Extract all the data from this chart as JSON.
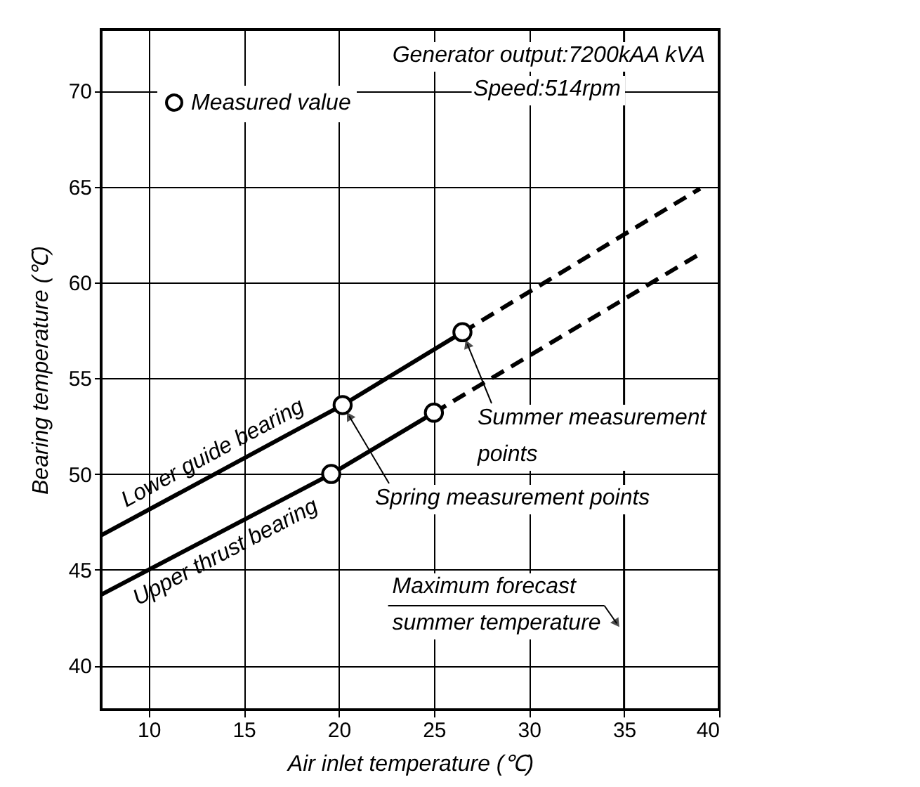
{
  "chart_data": {
    "type": "line",
    "xlabel": "Air inlet temperature (℃)",
    "ylabel": "Bearing temperature (℃)",
    "xlim": [
      7.5,
      40
    ],
    "ylim": [
      37.7,
      73.2
    ],
    "xticks": [
      10,
      15,
      20,
      25,
      30,
      35,
      40
    ],
    "yticks": [
      40,
      45,
      50,
      55,
      60,
      65,
      70
    ],
    "grid": true,
    "legend": "top left",
    "series": [
      {
        "name": "Lower guide bearing",
        "color": "#000000",
        "line_style": "solid",
        "x": [
          7.5,
          20.2,
          26.5
        ],
        "values": [
          46.8,
          53.6,
          57.4
        ]
      },
      {
        "color": "#000000",
        "line_style": "dashed",
        "x": [
          26.5,
          39
        ],
        "values": [
          57.4,
          64.9
        ]
      },
      {
        "name": "Upper thrust bearing",
        "color": "#000000",
        "line_style": "solid",
        "x": [
          7.5,
          19.6,
          25
        ],
        "values": [
          43.7,
          50,
          53.2
        ]
      },
      {
        "color": "#000000",
        "line_style": "dashed",
        "x": [
          25,
          39
        ],
        "values": [
          53.2,
          61.5
        ]
      },
      {
        "name": "Measured value",
        "type": "scatter",
        "color": "#000000",
        "marker": "circle",
        "x": [
          20.2,
          26.5,
          19.6,
          25
        ],
        "values": [
          53.6,
          57.4,
          50,
          53.2
        ]
      }
    ],
    "annotations": [
      "Generator output:7200kAA  kVA",
      "Speed:514rpm",
      {
        "text": "Summer measurement points",
        "x": 26.5,
        "y": 57.4
      },
      {
        "text": "Spring measurement points",
        "x": 20.2,
        "y": 53.6
      }
    ],
    "ref_lines": [
      {
        "axis": "x",
        "value": 35,
        "label": "Maximum forecast summer temperature"
      }
    ]
  }
}
